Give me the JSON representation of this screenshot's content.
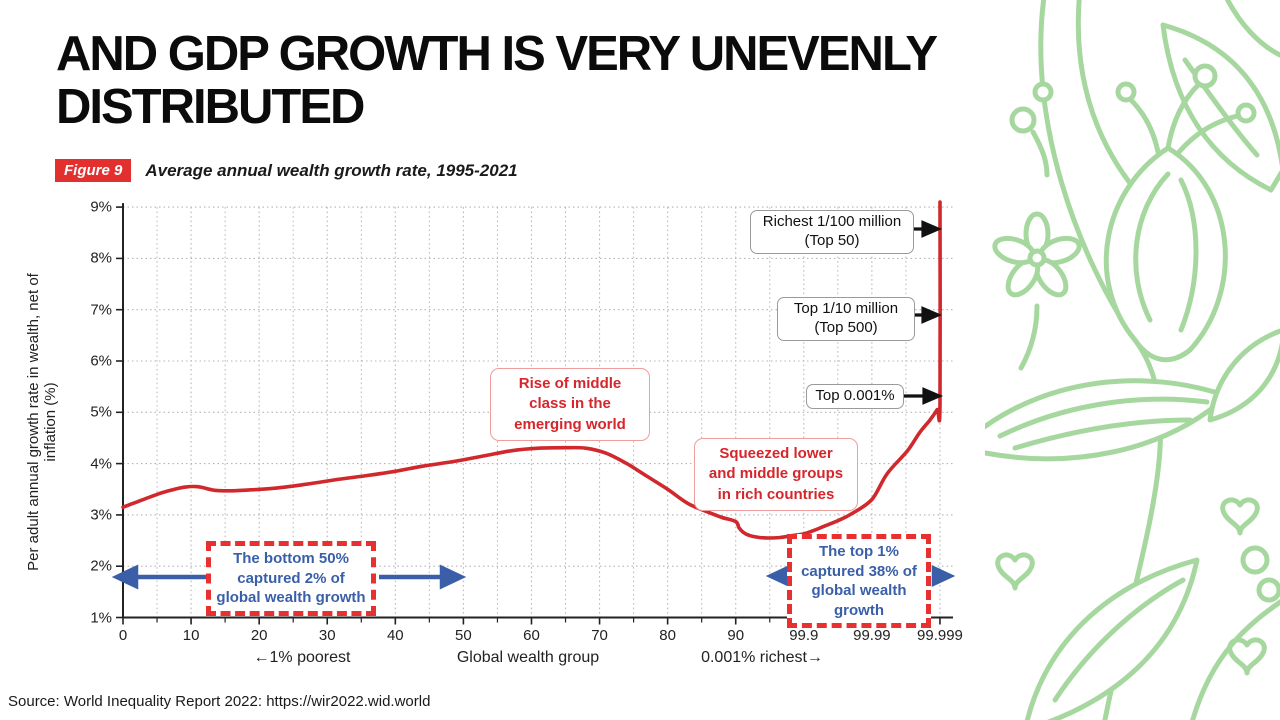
{
  "slide": {
    "title_lines": [
      "AND GDP GROWTH IS VERY UNEVENLY",
      "DISTRIBUTED"
    ],
    "source": "Source: World Inequality Report 2022: https://wir2022.wid.world"
  },
  "figure": {
    "tag": "Figure 9",
    "caption": "Average annual wealth growth rate, 1995-2021"
  },
  "chart_data": {
    "type": "line",
    "title": "Average annual wealth growth rate, 1995-2021",
    "xlabel": "Global wealth group",
    "ylabel": "Per adult annual growth rate in wealth, net of inflation (%)",
    "x_tick_labels": [
      "0",
      "10",
      "20",
      "30",
      "40",
      "50",
      "60",
      "70",
      "80",
      "90",
      "99.9",
      "99.99",
      "99.999"
    ],
    "y_tick_labels": [
      "1%",
      "2%",
      "3%",
      "4%",
      "5%",
      "6%",
      "7%",
      "8%",
      "9%"
    ],
    "ylim": [
      1,
      9
    ],
    "grid": true,
    "x_scale_note": "linear from 0 to 90, then log-spaced ticks at 99.9, 99.99, 99.999",
    "x_axis_sublabels": {
      "left": "←1% poorest",
      "center": "Global wealth group",
      "right": "0.001% richest→"
    },
    "series": [
      {
        "name": "Average annual wealth growth rate, 1995-2021 (%)",
        "points": [
          [
            0,
            3.15
          ],
          [
            2,
            3.25
          ],
          [
            5,
            3.4
          ],
          [
            7,
            3.48
          ],
          [
            9,
            3.54
          ],
          [
            11,
            3.55
          ],
          [
            13.5,
            3.48
          ],
          [
            16,
            3.47
          ],
          [
            19,
            3.49
          ],
          [
            23,
            3.53
          ],
          [
            27,
            3.6
          ],
          [
            32,
            3.7
          ],
          [
            36,
            3.77
          ],
          [
            40,
            3.85
          ],
          [
            44,
            3.95
          ],
          [
            49,
            4.05
          ],
          [
            53,
            4.15
          ],
          [
            57,
            4.25
          ],
          [
            61,
            4.3
          ],
          [
            65,
            4.31
          ],
          [
            68,
            4.3
          ],
          [
            71,
            4.2
          ],
          [
            74,
            4.0
          ],
          [
            77,
            3.75
          ],
          [
            80,
            3.5
          ],
          [
            83,
            3.22
          ],
          [
            86,
            3.05
          ],
          [
            88,
            2.95
          ],
          [
            90,
            2.87
          ],
          [
            92,
            2.75
          ],
          [
            94,
            2.66
          ],
          [
            96,
            2.6
          ],
          [
            98,
            2.56
          ],
          [
            99,
            2.55
          ],
          [
            99.5,
            2.56
          ],
          [
            99.8,
            2.6
          ],
          [
            99.9,
            2.63
          ],
          [
            99.93,
            2.7
          ],
          [
            99.95,
            2.78
          ],
          [
            99.97,
            2.9
          ],
          [
            99.98,
            3.02
          ],
          [
            99.99,
            3.3
          ],
          [
            99.994,
            3.8
          ],
          [
            99.997,
            4.25
          ],
          [
            99.998,
            4.6
          ],
          [
            99.9986,
            4.85
          ],
          [
            99.9989,
            5.05
          ],
          [
            99.999,
            5.15
          ],
          [
            99.999,
            9.1
          ]
        ]
      }
    ],
    "callouts": {
      "richest": {
        "lines": [
          "Richest 1/100 million",
          "(Top 50)"
        ],
        "arrow_points_to_pct": 8.6
      },
      "top_1_10_million": {
        "lines": [
          "Top 1/10 million",
          "(Top 500)"
        ],
        "arrow_points_to_pct": 6.9
      },
      "top_0001": {
        "text": "Top 0.001%",
        "arrow_points_to_pct": 5.3
      },
      "rise_middle_class": {
        "lines": [
          "Rise of middle",
          "class in the",
          "emerging world"
        ]
      },
      "squeezed": {
        "lines": [
          "Squeezed lower",
          "and middle groups",
          "in rich countries"
        ]
      },
      "bottom50": {
        "lines": [
          "The bottom 50%",
          "captured 2% of",
          "global wealth growth"
        ]
      },
      "top1": {
        "lines": [
          "The top 1%",
          "captured 38% of",
          "global wealth",
          "growth"
        ]
      }
    },
    "colors": {
      "line_red": "#d0282c",
      "callout_red_text": "#d6252b",
      "dashed_red": "#e83030",
      "blue": "#3a5fa8",
      "grid_gray": "#b5b5b5",
      "figure_tag_bg": "#e2302f",
      "floral_green": "#a6d79f"
    }
  }
}
